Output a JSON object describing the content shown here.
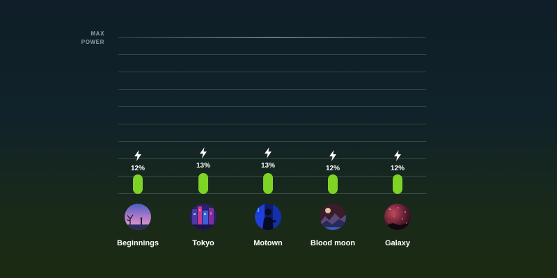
{
  "header": {
    "max_power_line1": "MAX",
    "max_power_line2": "POWER"
  },
  "accent_color": "#7dd424",
  "icon": "lightning-bolt-icon",
  "themes": [
    {
      "name": "Beginnings",
      "power_label": "12%",
      "power": 0.12,
      "thumbnail": "sunset-silhouette"
    },
    {
      "name": "Tokyo",
      "power_label": "13%",
      "power": 0.13,
      "thumbnail": "neon-city"
    },
    {
      "name": "Motown",
      "power_label": "13%",
      "power": 0.13,
      "thumbnail": "blue-musician"
    },
    {
      "name": "Blood moon",
      "power_label": "12%",
      "power": 0.12,
      "thumbnail": "moon-mountains"
    },
    {
      "name": "Galaxy",
      "power_label": "12%",
      "power": 0.12,
      "thumbnail": "red-starry-sky"
    }
  ]
}
